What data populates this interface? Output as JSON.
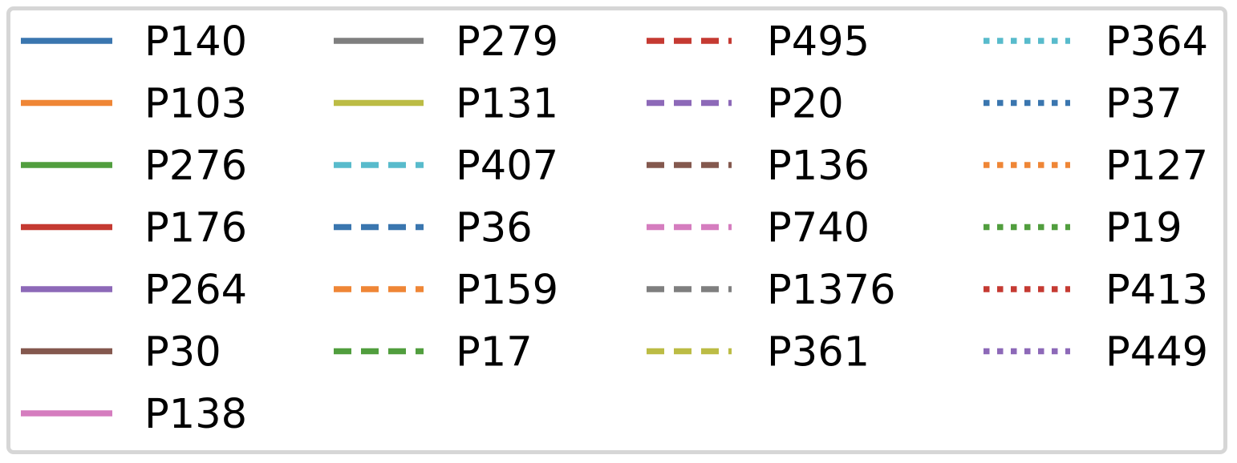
{
  "chart_data": {
    "type": "line",
    "legend": {
      "columns": [
        [
          {
            "name": "P140",
            "color": "#3a76af",
            "style": "solid"
          },
          {
            "name": "P103",
            "color": "#ef8636",
            "style": "solid"
          },
          {
            "name": "P276",
            "color": "#519e3e",
            "style": "solid"
          },
          {
            "name": "P176",
            "color": "#c53a32",
            "style": "solid"
          },
          {
            "name": "P264",
            "color": "#8d69b8",
            "style": "solid"
          },
          {
            "name": "P30",
            "color": "#84584e",
            "style": "solid"
          },
          {
            "name": "P138",
            "color": "#d57dbf",
            "style": "solid"
          }
        ],
        [
          {
            "name": "P279",
            "color": "#7f7f7f",
            "style": "solid"
          },
          {
            "name": "P131",
            "color": "#bcbc45",
            "style": "solid"
          },
          {
            "name": "P407",
            "color": "#58bbcc",
            "style": "dashed"
          },
          {
            "name": "P36",
            "color": "#3a76af",
            "style": "dashed"
          },
          {
            "name": "P159",
            "color": "#ef8636",
            "style": "dashed"
          },
          {
            "name": "P17",
            "color": "#519e3e",
            "style": "dashed"
          }
        ],
        [
          {
            "name": "P495",
            "color": "#c53a32",
            "style": "dashed"
          },
          {
            "name": "P20",
            "color": "#8d69b8",
            "style": "dashed"
          },
          {
            "name": "P136",
            "color": "#84584e",
            "style": "dashed"
          },
          {
            "name": "P740",
            "color": "#d57dbf",
            "style": "dashed"
          },
          {
            "name": "P1376",
            "color": "#7f7f7f",
            "style": "dashed"
          },
          {
            "name": "P361",
            "color": "#bcbc45",
            "style": "dashed"
          }
        ],
        [
          {
            "name": "P364",
            "color": "#58bbcc",
            "style": "dotted"
          },
          {
            "name": "P37",
            "color": "#3a76af",
            "style": "dotted"
          },
          {
            "name": "P127",
            "color": "#ef8636",
            "style": "dotted"
          },
          {
            "name": "P19",
            "color": "#519e3e",
            "style": "dotted"
          },
          {
            "name": "P413",
            "color": "#c53a32",
            "style": "dotted"
          },
          {
            "name": "P449",
            "color": "#8d69b8",
            "style": "dotted"
          }
        ]
      ]
    }
  }
}
